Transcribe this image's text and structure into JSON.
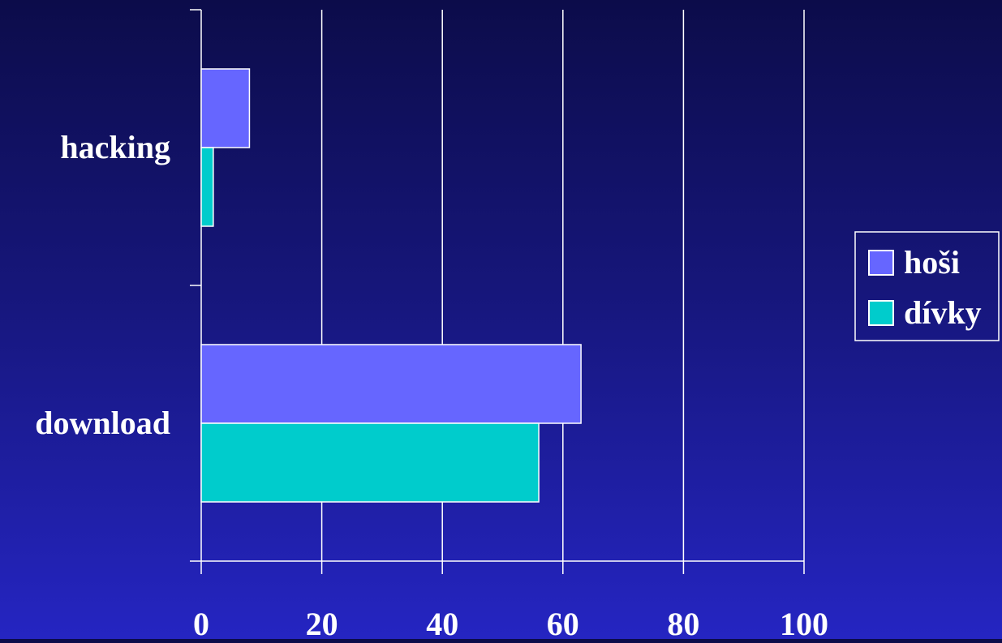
{
  "chart_data": {
    "type": "bar",
    "orientation": "horizontal",
    "categories": [
      "hacking",
      "download"
    ],
    "series": [
      {
        "name": "hoši",
        "values": [
          8,
          63
        ],
        "color": "#6666ff"
      },
      {
        "name": "dívky",
        "values": [
          2,
          56
        ],
        "color": "#00cccc"
      }
    ],
    "title": "",
    "xlabel": "",
    "ylabel": "",
    "xlim": [
      0,
      100
    ],
    "x_ticks": [
      0,
      20,
      40,
      60,
      80,
      100
    ],
    "grid": true,
    "legend_position": "right"
  },
  "colors": {
    "background_top": "#0c0c4a",
    "background_bottom": "#2525c2",
    "axis": "#ffffff",
    "text": "#ffffff"
  }
}
